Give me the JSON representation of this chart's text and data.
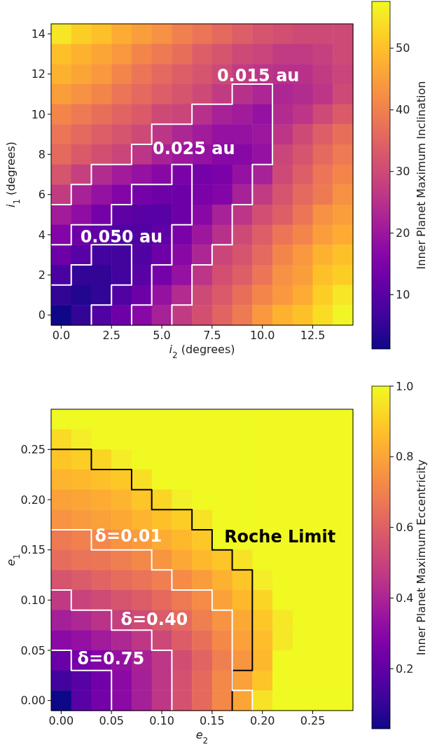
{
  "chart_data": [
    {
      "type": "heatmap",
      "xlabel": "i$_{2}$ (degrees)",
      "ylabel": "i$_{1}$ (degrees)",
      "clabel": "Inner Planet Maximum Inclination",
      "x": [
        0,
        1,
        2,
        3,
        4,
        5,
        6,
        7,
        8,
        9,
        10,
        11,
        12,
        13,
        14
      ],
      "y": [
        14,
        13,
        12,
        11,
        10,
        9,
        8,
        7,
        6,
        5,
        4,
        3,
        2,
        1,
        0
      ],
      "xlim": [
        -0.5,
        14.5
      ],
      "xticks": [
        {
          "value": 0,
          "label": "0.0"
        },
        {
          "value": 2.5,
          "label": "2.5"
        },
        {
          "value": 5,
          "label": "5.0"
        },
        {
          "value": 7.5,
          "label": "7.5"
        },
        {
          "value": 10,
          "label": "10.0"
        },
        {
          "value": 12.5,
          "label": "12.5"
        }
      ],
      "ylim": [
        -0.5,
        14.5
      ],
      "yticks": [
        0,
        2,
        4,
        6,
        8,
        10,
        12,
        14
      ],
      "clim": [
        1.2,
        57.6
      ],
      "cticks": [
        10,
        20,
        30,
        40,
        50
      ],
      "cells": [
        [
          55,
          52,
          50,
          47,
          45,
          43,
          40,
          38,
          36,
          34,
          32,
          31,
          30,
          30,
          30
        ],
        [
          50,
          48,
          46,
          44,
          41,
          39,
          37,
          34,
          32,
          30,
          29,
          27,
          27,
          28,
          30
        ],
        [
          48,
          46,
          44,
          41,
          38,
          36,
          34,
          32,
          30,
          27,
          26,
          25,
          25,
          27,
          29
        ],
        [
          45,
          43,
          41,
          38,
          36,
          34,
          32,
          30,
          27,
          25,
          23,
          23,
          24,
          26,
          30
        ],
        [
          41,
          39,
          37,
          35,
          33,
          30,
          29,
          25,
          22,
          21,
          19,
          24,
          26,
          30,
          33
        ],
        [
          38,
          36,
          34,
          32,
          30,
          26,
          23,
          21,
          19,
          19,
          20,
          26,
          30,
          34,
          37
        ],
        [
          36,
          33,
          31,
          29,
          26,
          22,
          20,
          19,
          17,
          17,
          19,
          29,
          32,
          36,
          39
        ],
        [
          32,
          28,
          24,
          21,
          19,
          17,
          15,
          14,
          15,
          19,
          22,
          30,
          34,
          38,
          41
        ],
        [
          27,
          22,
          19,
          16,
          14,
          13,
          13,
          15,
          16,
          22,
          27,
          32,
          36,
          39,
          43
        ],
        [
          21,
          18,
          14,
          11,
          10,
          10,
          13,
          17,
          22,
          26,
          31,
          34,
          38,
          43,
          45
        ],
        [
          16,
          13,
          11,
          9,
          9,
          11,
          15,
          20,
          25,
          30,
          34,
          38,
          41,
          45,
          47
        ],
        [
          13,
          10,
          7,
          7,
          9,
          13,
          17,
          23,
          29,
          32,
          36,
          41,
          44,
          48,
          50
        ],
        [
          8,
          5,
          5,
          7,
          10,
          14,
          19,
          26,
          31,
          34,
          38,
          43,
          45,
          50,
          52
        ],
        [
          5,
          3,
          5,
          9,
          13,
          19,
          24,
          30,
          33,
          37,
          41,
          44,
          47,
          52,
          55
        ],
        [
          1.5,
          5,
          9,
          13,
          17,
          22,
          27,
          31,
          35,
          39,
          44,
          48,
          50,
          54,
          57
        ]
      ],
      "series": [
        {
          "type": "line",
          "color": "#ffffff",
          "x": [
            -0.5,
            0.5,
            0.5,
            1.5,
            1.5,
            3.5,
            3.5,
            2.5,
            2.5,
            1.5,
            1.5
          ],
          "values": [
            1.5,
            1.5,
            2.5,
            2.5,
            3.5,
            3.5,
            1.5,
            1.5,
            0.5,
            0.5,
            -0.5
          ]
        },
        {
          "type": "line",
          "color": "#ffffff",
          "x": [
            -0.5,
            0.5,
            0.5,
            2.5,
            2.5,
            3.5,
            3.5,
            5.5,
            5.5,
            6.5,
            6.5,
            5.5,
            5.5,
            4.5,
            4.5,
            3.5,
            3.5
          ],
          "values": [
            3.5,
            3.5,
            4.5,
            4.5,
            5.5,
            5.5,
            6.5,
            6.5,
            7.5,
            7.5,
            4.5,
            4.5,
            2.5,
            2.5,
            0.5,
            0.5,
            -0.5
          ]
        },
        {
          "type": "line",
          "color": "#ffffff",
          "x": [
            -0.5,
            0.5,
            0.5,
            1.5,
            1.5,
            3.5,
            3.5,
            4.5,
            4.5,
            6.5,
            6.5,
            8.5,
            8.5,
            10.5,
            10.5,
            9.5,
            9.5,
            8.5,
            8.5,
            7.5,
            7.5,
            6.5,
            6.5,
            5.5,
            5.5
          ],
          "values": [
            5.5,
            5.5,
            6.5,
            6.5,
            7.5,
            7.5,
            8.5,
            8.5,
            9.5,
            9.5,
            10.5,
            10.5,
            11.5,
            11.5,
            7.5,
            7.5,
            5.5,
            5.5,
            3.5,
            3.5,
            2.5,
            2.5,
            0.5,
            0.5,
            -0.5
          ]
        }
      ],
      "annotations": [
        "0.050 au",
        "0.025 au",
        "0.015 au"
      ]
    },
    {
      "type": "heatmap",
      "xlabel": "e$_{2}$",
      "ylabel": "e$_{1}$",
      "clabel": "Inner Planet Maximum Eccentricity",
      "x": [
        0,
        0.02,
        0.04,
        0.06,
        0.08,
        0.1,
        0.12,
        0.14,
        0.16,
        0.18,
        0.2,
        0.22,
        0.24,
        0.26,
        0.28
      ],
      "y": [
        0.28,
        0.26,
        0.24,
        0.22,
        0.2,
        0.18,
        0.16,
        0.14,
        0.12,
        0.1,
        0.08,
        0.06,
        0.04,
        0.02,
        0
      ],
      "xlim": [
        -0.01,
        0.29
      ],
      "xticks": [
        {
          "value": 0,
          "label": "0.00"
        },
        {
          "value": 0.05,
          "label": "0.05"
        },
        {
          "value": 0.1,
          "label": "0.10"
        },
        {
          "value": 0.15,
          "label": "0.15"
        },
        {
          "value": 0.2,
          "label": "0.20"
        },
        {
          "value": 0.25,
          "label": "0.25"
        }
      ],
      "ylim": [
        -0.01,
        0.29
      ],
      "yticks": [
        {
          "value": 0,
          "label": "0.00"
        },
        {
          "value": 0.05,
          "label": "0.05"
        },
        {
          "value": 0.1,
          "label": "0.10"
        },
        {
          "value": 0.15,
          "label": "0.15"
        },
        {
          "value": 0.2,
          "label": "0.20"
        },
        {
          "value": 0.25,
          "label": "0.25"
        }
      ],
      "clim": [
        0.03,
        1.0
      ],
      "cticks": [
        {
          "value": 0.2,
          "label": "0.2"
        },
        {
          "value": 0.4,
          "label": "0.4"
        },
        {
          "value": 0.6,
          "label": "0.6"
        },
        {
          "value": 0.8,
          "label": "0.8"
        },
        {
          "value": 1.0,
          "label": "1.0"
        }
      ],
      "cells": [
        [
          1,
          1,
          1,
          1,
          1,
          1,
          1,
          1,
          1,
          1,
          1,
          1,
          1,
          1,
          1
        ],
        [
          0.93,
          0.97,
          1,
          1,
          1,
          1,
          1,
          1,
          1,
          1,
          1,
          1,
          1,
          1,
          1
        ],
        [
          0.88,
          0.9,
          0.92,
          0.97,
          1,
          1,
          1,
          1,
          1,
          1,
          1,
          1,
          1,
          1,
          1
        ],
        [
          0.84,
          0.85,
          0.87,
          0.89,
          0.94,
          1,
          1,
          1,
          1,
          1,
          1,
          1,
          1,
          1,
          1
        ],
        [
          0.79,
          0.8,
          0.82,
          0.84,
          0.88,
          0.92,
          0.98,
          1,
          1,
          1,
          1,
          1,
          1,
          1,
          1
        ],
        [
          0.75,
          0.77,
          0.79,
          0.81,
          0.84,
          0.87,
          0.9,
          0.95,
          1,
          1,
          1,
          1,
          1,
          1,
          1
        ],
        [
          0.68,
          0.7,
          0.72,
          0.75,
          0.78,
          0.82,
          0.85,
          0.89,
          1,
          1,
          1,
          1,
          1,
          1,
          1
        ],
        [
          0.64,
          0.66,
          0.67,
          0.69,
          0.72,
          0.76,
          0.81,
          0.85,
          0.88,
          0.95,
          1,
          1,
          1,
          1,
          1
        ],
        [
          0.56,
          0.58,
          0.61,
          0.64,
          0.66,
          0.69,
          0.73,
          0.78,
          0.83,
          0.88,
          0.97,
          1,
          1,
          1,
          1
        ],
        [
          0.47,
          0.5,
          0.53,
          0.56,
          0.59,
          0.63,
          0.68,
          0.73,
          0.79,
          0.85,
          0.92,
          1,
          1,
          1,
          1
        ],
        [
          0.38,
          0.41,
          0.45,
          0.49,
          0.53,
          0.58,
          0.63,
          0.69,
          0.75,
          0.81,
          0.89,
          0.96,
          1,
          1,
          1
        ],
        [
          0.31,
          0.33,
          0.37,
          0.41,
          0.46,
          0.52,
          0.59,
          0.65,
          0.72,
          0.79,
          0.86,
          0.96,
          1,
          1,
          1
        ],
        [
          0.22,
          0.25,
          0.29,
          0.33,
          0.39,
          0.46,
          0.54,
          0.61,
          0.69,
          0.76,
          0.85,
          1,
          1,
          1,
          1
        ],
        [
          0.13,
          0.18,
          0.24,
          0.31,
          0.38,
          0.46,
          0.55,
          0.63,
          0.72,
          0.79,
          0.88,
          1,
          1,
          1,
          1
        ],
        [
          0.03,
          0.18,
          0.25,
          0.31,
          0.38,
          0.46,
          0.55,
          0.63,
          0.72,
          0.8,
          0.95,
          1,
          1,
          1,
          1
        ]
      ],
      "series": [
        {
          "type": "line",
          "color": "#000000",
          "x": [
            -0.01,
            0.03,
            0.03,
            0.07,
            0.07,
            0.09,
            0.09,
            0.13,
            0.13,
            0.15,
            0.15,
            0.17,
            0.17,
            0.19,
            0.19,
            0.17,
            0.17
          ],
          "values": [
            0.25,
            0.25,
            0.23,
            0.23,
            0.21,
            0.21,
            0.19,
            0.19,
            0.17,
            0.17,
            0.15,
            0.15,
            0.13,
            0.13,
            0.03,
            0.03,
            -0.01
          ]
        },
        {
          "type": "line",
          "color": "#ffffff",
          "x": [
            -0.01,
            0.03,
            0.03,
            0.09,
            0.09,
            0.11,
            0.11,
            0.15,
            0.15,
            0.17,
            0.17,
            0.19,
            0.19
          ],
          "values": [
            0.17,
            0.17,
            0.15,
            0.15,
            0.13,
            0.13,
            0.11,
            0.11,
            0.09,
            0.09,
            0.01,
            0.01,
            -0.01
          ]
        },
        {
          "type": "line",
          "color": "#ffffff",
          "x": [
            -0.01,
            0.01,
            0.01,
            0.05,
            0.05,
            0.09,
            0.09,
            0.11,
            0.11
          ],
          "values": [
            0.11,
            0.11,
            0.09,
            0.09,
            0.07,
            0.07,
            0.05,
            0.05,
            -0.01
          ]
        },
        {
          "type": "line",
          "color": "#ffffff",
          "x": [
            -0.01,
            0.01,
            0.01,
            0.05,
            0.05
          ],
          "values": [
            0.05,
            0.05,
            0.03,
            0.03,
            -0.01
          ]
        }
      ],
      "annotations": [
        "δ=0.01",
        "δ=0.40",
        "δ=0.75",
        "Roche Limit"
      ]
    }
  ]
}
